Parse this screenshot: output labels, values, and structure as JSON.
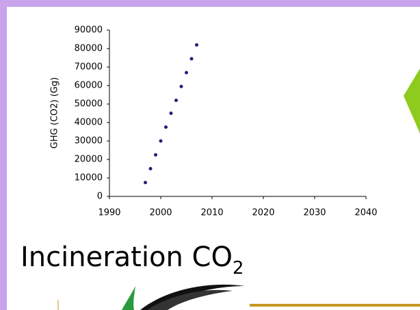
{
  "chart_data": {
    "type": "scatter",
    "y_label": "GHG (CO2) (Gg)",
    "color": "#1f1f7a",
    "x": [
      1997,
      1998,
      1999,
      2000,
      2001,
      2002,
      2003,
      2004,
      2005,
      2006,
      2007
    ],
    "values": [
      7500,
      15000,
      22500,
      30000,
      37500,
      45000,
      52000,
      59500,
      67000,
      74500,
      82000
    ],
    "xlim": [
      1990,
      2040
    ],
    "xticks": [
      1990,
      2000,
      2010,
      2020,
      2030,
      2040
    ],
    "ylim": [
      0,
      90000
    ],
    "yticks": [
      0,
      10000,
      20000,
      30000,
      40000,
      50000,
      60000,
      70000,
      80000,
      90000
    ]
  },
  "slide": {
    "title": "Incineration CO",
    "title_subscript": "2"
  }
}
